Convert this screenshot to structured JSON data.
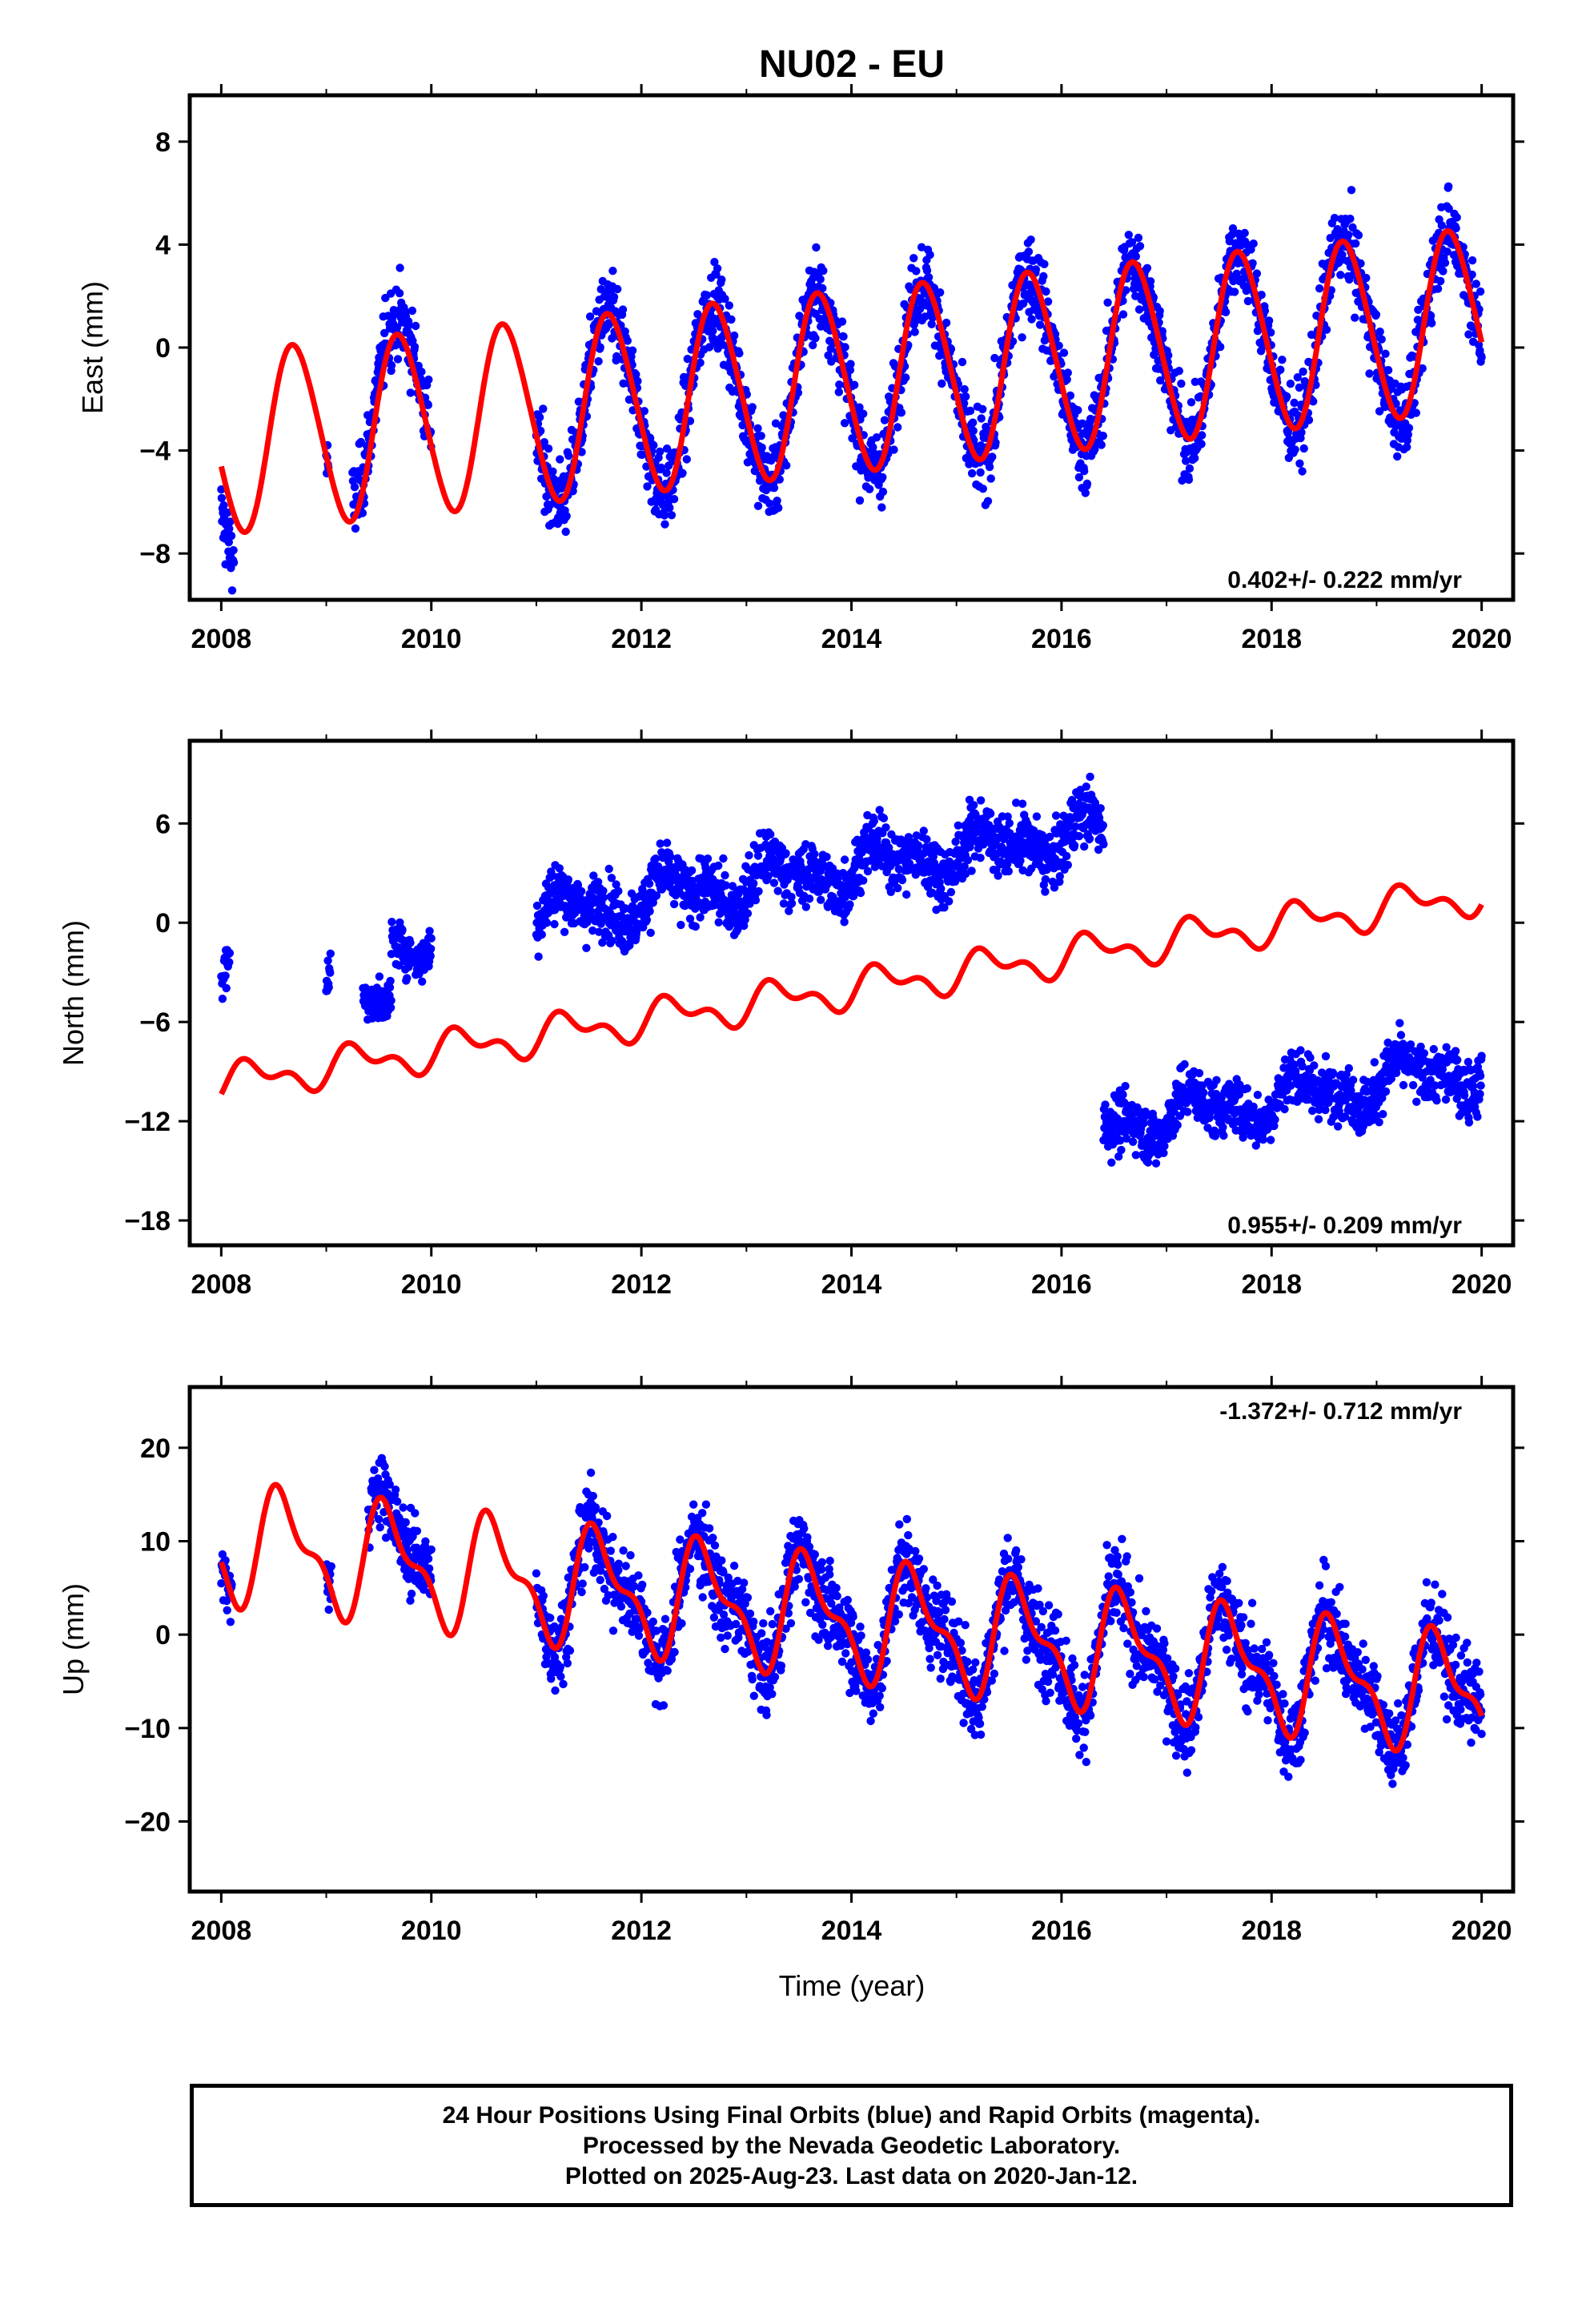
{
  "chart_data": {
    "type": "scatter",
    "title": "NU02 - EU",
    "xlabel": "Time (year)",
    "xlim": [
      2007.7,
      2020.3
    ],
    "x_ticks": [
      "2008",
      "2010",
      "2012",
      "2014",
      "2016",
      "2018",
      "2020"
    ],
    "series_colors": {
      "observations": "#0000ff",
      "model": "#ff0000"
    },
    "panels": [
      {
        "name": "east",
        "ylabel": "East (mm)",
        "ylim": [
          -9.8,
          9.8
        ],
        "y_ticks": [
          "8",
          "4",
          "0",
          "-4",
          "-8"
        ],
        "rate_label": "0.402+/- 0.222 mm/yr",
        "rate_position": "bottom-right",
        "model": {
          "base": -1.3,
          "slope": 0.402,
          "ref_year": 2014.0,
          "annual_amp": 3.5,
          "phase_year": 2008.45,
          "semiannual_amp": 0.3
        },
        "segments": [
          {
            "start": 2008.0,
            "end": 2008.12,
            "sigma": 1.2,
            "shift": -1.8
          },
          {
            "start": 2009.0,
            "end": 2009.02,
            "sigma": 1.0,
            "shift": 0.0
          },
          {
            "start": 2009.25,
            "end": 2010.0,
            "sigma": 1.3,
            "shift": 0.6
          },
          {
            "start": 2011.0,
            "end": 2020.0,
            "sigma": 1.35,
            "shift": 0.0
          }
        ]
      },
      {
        "name": "north",
        "ylabel": "North (mm)",
        "ylim": [
          -19.5,
          11.0
        ],
        "y_ticks": [
          "6",
          "0",
          "-6",
          "-12",
          "-18"
        ],
        "rate_label": "0.955+/- 0.209 mm/yr",
        "rate_position": "bottom-right",
        "model": {
          "base": -4.0,
          "slope": 0.955,
          "ref_year": 2014.0,
          "annual_amp": 0.9,
          "phase_year": 2008.05,
          "semiannual_amp": 0.6
        },
        "segments": [
          {
            "start": 2008.0,
            "end": 2008.08,
            "sigma": 1.3,
            "shift": 7.0
          },
          {
            "start": 2009.0,
            "end": 2009.04,
            "sigma": 1.1,
            "shift": 6.0
          },
          {
            "start": 2009.35,
            "end": 2009.62,
            "sigma": 1.0,
            "shift": 3.5
          },
          {
            "start": 2009.62,
            "end": 2010.0,
            "sigma": 1.2,
            "shift": 7.0
          },
          {
            "start": 2011.0,
            "end": 2016.4,
            "sigma": 1.6,
            "shift": 7.3
          },
          {
            "start": 2016.4,
            "end": 2020.0,
            "sigma": 1.5,
            "shift": -10.5
          }
        ]
      },
      {
        "name": "up",
        "ylabel": "Up (mm)",
        "ylim": [
          -27.5,
          26.5
        ],
        "y_ticks": [
          "20",
          "10",
          "0",
          "-10",
          "-20"
        ],
        "rate_label": "-1.372+/- 0.712 mm/yr",
        "rate_position": "top-right",
        "model": {
          "base": 1.6,
          "slope": -1.372,
          "ref_year": 2014.0,
          "annual_amp": 5.5,
          "phase_year": 2008.35,
          "semiannual_amp": 2.5
        },
        "segments": [
          {
            "start": 2008.0,
            "end": 2008.1,
            "sigma": 3.0,
            "shift": 0.0
          },
          {
            "start": 2009.0,
            "end": 2009.05,
            "sigma": 3.5,
            "shift": 0.0
          },
          {
            "start": 2009.4,
            "end": 2010.0,
            "sigma": 3.5,
            "shift": 1.0
          },
          {
            "start": 2011.0,
            "end": 2020.0,
            "sigma": 4.0,
            "shift": 0.0
          }
        ]
      }
    ]
  },
  "footer": {
    "line1": "24 Hour Positions Using Final Orbits (blue) and Rapid Orbits (magenta).",
    "line2": "Processed by the Nevada Geodetic Laboratory.",
    "line3": "Plotted on 2025-Aug-23. Last data on 2020-Jan-12."
  }
}
